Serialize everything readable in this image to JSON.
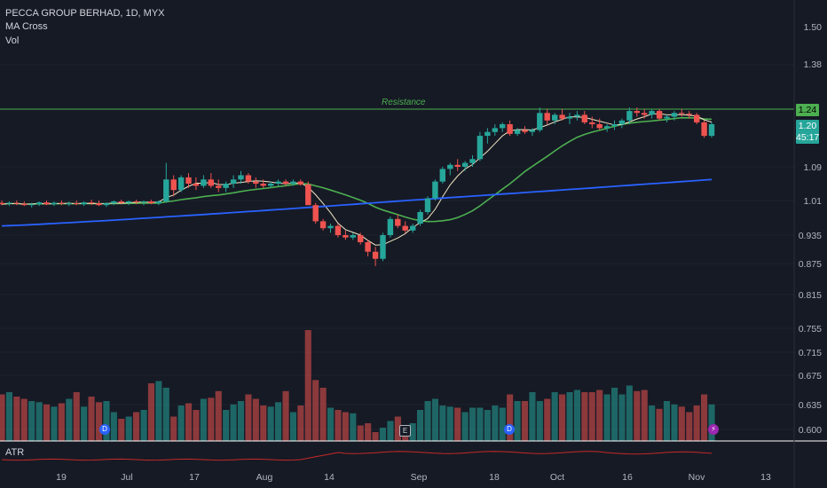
{
  "header": {
    "symbol": "PECCA GROUP BERHAD, 1D, MYX",
    "indicator_1": "MA Cross",
    "indicator_2": "Vol",
    "atr_label": "ATR"
  },
  "price_labels": [
    "1.50",
    "1.38",
    "1.09",
    "1.01",
    "0.935",
    "0.875",
    "0.815",
    "0.755",
    "0.715",
    "0.675",
    "0.635",
    "0.600"
  ],
  "badges": {
    "resistance_price": "1.24",
    "last_price": "1.20",
    "countdown": "45:17"
  },
  "annotation": {
    "resistance_text": "Resistance"
  },
  "x_labels": [
    "19",
    "Jul",
    "17",
    "Aug",
    "14",
    "Sep",
    "18",
    "Oct",
    "16",
    "Nov",
    "13"
  ],
  "markers": {
    "dividend_1": "D",
    "earnings": "E",
    "dividend_2": "D",
    "split": "⚡"
  },
  "colors": {
    "background": "#161a25",
    "up": "#26a69a",
    "down": "#ef5350",
    "ma_short": "#f1e6c2",
    "ma_mid": "#4caf50",
    "ma_long": "#2962ff",
    "resistance": "#4caf50",
    "atr": "#c62828"
  },
  "chart_data": {
    "type": "candlestick",
    "title": "PECCA GROUP BERHAD, 1D, MYX",
    "y_range": [
      0.58,
      1.55
    ],
    "resistance": 1.24,
    "candles": [
      [
        1.005,
        1.01,
        1.0,
        1.002
      ],
      [
        1.003,
        1.008,
        0.998,
        1.005
      ],
      [
        1.005,
        1.01,
        1.0,
        1.003
      ],
      [
        1.003,
        1.008,
        0.998,
        1.0
      ],
      [
        1.0,
        1.005,
        0.995,
        1.002
      ],
      [
        1.002,
        1.008,
        0.998,
        1.006
      ],
      [
        1.006,
        1.01,
        1.0,
        1.002
      ],
      [
        1.002,
        1.008,
        0.998,
        1.005
      ],
      [
        1.005,
        1.01,
        1.0,
        1.003
      ],
      [
        1.003,
        1.008,
        0.998,
        1.004
      ],
      [
        1.004,
        1.01,
        1.0,
        1.002
      ],
      [
        1.002,
        1.008,
        0.998,
        1.006
      ],
      [
        1.006,
        1.012,
        1.0,
        1.004
      ],
      [
        1.004,
        1.01,
        0.998,
        1.0
      ],
      [
        1.0,
        1.006,
        0.996,
        1.004
      ],
      [
        1.004,
        1.01,
        1.0,
        1.008
      ],
      [
        1.008,
        1.012,
        1.002,
        1.005
      ],
      [
        1.005,
        1.01,
        1.0,
        1.008
      ],
      [
        1.008,
        1.012,
        1.002,
        1.006
      ],
      [
        1.006,
        1.01,
        1.0,
        1.008
      ],
      [
        1.008,
        1.012,
        1.002,
        1.004
      ],
      [
        1.004,
        1.01,
        1.0,
        1.008
      ],
      [
        1.008,
        1.1,
        1.005,
        1.06
      ],
      [
        1.06,
        1.07,
        1.02,
        1.035
      ],
      [
        1.035,
        1.07,
        1.03,
        1.065
      ],
      [
        1.065,
        1.075,
        1.04,
        1.05
      ],
      [
        1.05,
        1.065,
        1.035,
        1.045
      ],
      [
        1.045,
        1.07,
        1.04,
        1.06
      ],
      [
        1.06,
        1.075,
        1.04,
        1.045
      ],
      [
        1.045,
        1.06,
        1.03,
        1.04
      ],
      [
        1.04,
        1.055,
        1.03,
        1.05
      ],
      [
        1.05,
        1.07,
        1.04,
        1.06
      ],
      [
        1.06,
        1.08,
        1.05,
        1.07
      ],
      [
        1.07,
        1.075,
        1.05,
        1.055
      ],
      [
        1.055,
        1.065,
        1.04,
        1.05
      ],
      [
        1.05,
        1.06,
        1.04,
        1.045
      ],
      [
        1.045,
        1.055,
        1.04,
        1.05
      ],
      [
        1.05,
        1.06,
        1.045,
        1.055
      ],
      [
        1.055,
        1.06,
        1.045,
        1.05
      ],
      [
        1.05,
        1.06,
        1.045,
        1.055
      ],
      [
        1.055,
        1.06,
        1.045,
        1.048
      ],
      [
        1.048,
        1.055,
        1.0,
        1.0
      ],
      [
        1.0,
        1.005,
        0.96,
        0.965
      ],
      [
        0.965,
        0.97,
        0.945,
        0.95
      ],
      [
        0.95,
        0.96,
        0.94,
        0.955
      ],
      [
        0.955,
        0.96,
        0.93,
        0.935
      ],
      [
        0.935,
        0.945,
        0.925,
        0.93
      ],
      [
        0.93,
        0.94,
        0.925,
        0.935
      ],
      [
        0.935,
        0.94,
        0.915,
        0.92
      ],
      [
        0.92,
        0.925,
        0.89,
        0.9
      ],
      [
        0.9,
        0.91,
        0.87,
        0.885
      ],
      [
        0.885,
        0.94,
        0.88,
        0.935
      ],
      [
        0.935,
        0.975,
        0.93,
        0.97
      ],
      [
        0.97,
        0.98,
        0.95,
        0.955
      ],
      [
        0.955,
        0.965,
        0.94,
        0.945
      ],
      [
        0.945,
        0.96,
        0.94,
        0.955
      ],
      [
        0.96,
        0.99,
        0.955,
        0.985
      ],
      [
        0.985,
        1.02,
        0.98,
        1.015
      ],
      [
        1.015,
        1.06,
        1.01,
        1.055
      ],
      [
        1.055,
        1.09,
        1.05,
        1.085
      ],
      [
        1.085,
        1.1,
        1.07,
        1.095
      ],
      [
        1.095,
        1.11,
        1.08,
        1.09
      ],
      [
        1.09,
        1.105,
        1.08,
        1.1
      ],
      [
        1.1,
        1.12,
        1.09,
        1.11
      ],
      [
        1.11,
        1.18,
        1.105,
        1.17
      ],
      [
        1.17,
        1.19,
        1.15,
        1.18
      ],
      [
        1.18,
        1.2,
        1.17,
        1.19
      ],
      [
        1.19,
        1.205,
        1.18,
        1.2
      ],
      [
        1.2,
        1.21,
        1.17,
        1.175
      ],
      [
        1.175,
        1.19,
        1.17,
        1.185
      ],
      [
        1.185,
        1.195,
        1.175,
        1.18
      ],
      [
        1.18,
        1.19,
        1.17,
        1.185
      ],
      [
        1.185,
        1.245,
        1.18,
        1.23
      ],
      [
        1.23,
        1.24,
        1.2,
        1.21
      ],
      [
        1.21,
        1.23,
        1.2,
        1.225
      ],
      [
        1.225,
        1.24,
        1.21,
        1.215
      ],
      [
        1.215,
        1.23,
        1.2,
        1.22
      ],
      [
        1.22,
        1.235,
        1.21,
        1.225
      ],
      [
        1.225,
        1.235,
        1.2,
        1.205
      ],
      [
        1.205,
        1.22,
        1.19,
        1.2
      ],
      [
        1.2,
        1.215,
        1.185,
        1.19
      ],
      [
        1.19,
        1.2,
        1.18,
        1.195
      ],
      [
        1.195,
        1.21,
        1.185,
        1.2
      ],
      [
        1.2,
        1.215,
        1.19,
        1.21
      ],
      [
        1.21,
        1.245,
        1.2,
        1.235
      ],
      [
        1.235,
        1.245,
        1.22,
        1.23
      ],
      [
        1.23,
        1.24,
        1.215,
        1.225
      ],
      [
        1.225,
        1.24,
        1.215,
        1.235
      ],
      [
        1.235,
        1.24,
        1.21,
        1.215
      ],
      [
        1.215,
        1.225,
        1.205,
        1.22
      ],
      [
        1.22,
        1.235,
        1.21,
        1.23
      ],
      [
        1.23,
        1.24,
        1.22,
        1.228
      ],
      [
        1.228,
        1.235,
        1.215,
        1.225
      ],
      [
        1.225,
        1.23,
        1.2,
        1.205
      ],
      [
        1.205,
        1.21,
        1.165,
        1.17
      ],
      [
        1.17,
        1.205,
        1.165,
        1.2
      ]
    ],
    "volume": [
      0.42,
      0.44,
      0.4,
      0.38,
      0.36,
      0.35,
      0.33,
      0.31,
      0.34,
      0.38,
      0.44,
      0.31,
      0.4,
      0.35,
      0.36,
      0.26,
      0.2,
      0.22,
      0.26,
      0.28,
      0.52,
      0.54,
      0.48,
      0.22,
      0.32,
      0.34,
      0.28,
      0.38,
      0.39,
      0.45,
      0.28,
      0.33,
      0.36,
      0.42,
      0.38,
      0.32,
      0.31,
      0.35,
      0.45,
      0.26,
      0.32,
      1.0,
      0.55,
      0.48,
      0.3,
      0.28,
      0.26,
      0.25,
      0.14,
      0.16,
      0.08,
      0.12,
      0.18,
      0.22,
      0.1,
      0.16,
      0.28,
      0.36,
      0.38,
      0.32,
      0.31,
      0.3,
      0.26,
      0.3,
      0.3,
      0.28,
      0.32,
      0.3,
      0.42,
      0.36,
      0.36,
      0.44,
      0.36,
      0.38,
      0.44,
      0.42,
      0.44,
      0.46,
      0.44,
      0.44,
      0.46,
      0.42,
      0.48,
      0.42,
      0.5,
      0.45,
      0.46,
      0.32,
      0.29,
      0.36,
      0.33,
      0.31,
      0.26,
      0.32,
      0.42,
      0.33
    ]
  }
}
